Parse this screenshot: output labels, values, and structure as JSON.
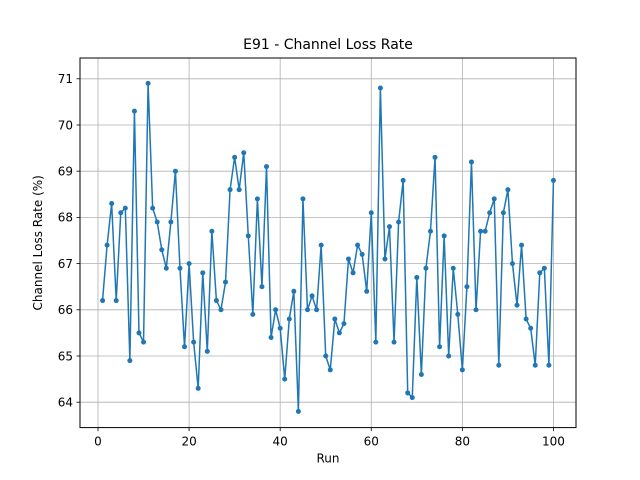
{
  "chart_data": {
    "type": "line",
    "title": "E91 - Channel Loss Rate",
    "xlabel": "Run",
    "ylabel": "Channel Loss Rate (%)",
    "xlim": [
      -3.95,
      104.95
    ],
    "ylim": [
      63.45,
      71.45
    ],
    "x_ticks": [
      0,
      20,
      40,
      60,
      80,
      100
    ],
    "y_ticks": [
      64,
      65,
      66,
      67,
      68,
      69,
      70,
      71
    ],
    "grid": true,
    "legend": "none",
    "line_color": "#1f77b4",
    "series": [
      {
        "x": [
          1,
          2,
          3,
          4,
          5,
          6,
          7,
          8,
          9,
          10,
          11,
          12,
          13,
          14,
          15,
          16,
          17,
          18,
          19,
          20,
          21,
          22,
          23,
          24,
          25,
          26,
          27,
          28,
          29,
          30,
          31,
          32,
          33,
          34,
          35,
          36,
          37,
          38,
          39,
          40,
          41,
          42,
          43,
          44,
          45,
          46,
          47,
          48,
          49,
          50,
          51,
          52,
          53,
          54,
          55,
          56,
          57,
          58,
          59,
          60,
          61,
          62,
          63,
          64,
          65,
          66,
          67,
          68,
          69,
          70,
          71,
          72,
          73,
          74,
          75,
          76,
          77,
          78,
          79,
          80,
          81,
          82,
          83,
          84,
          85,
          86,
          87,
          88,
          89,
          90,
          91,
          92,
          93,
          94,
          95,
          96,
          97,
          98,
          99,
          100
        ],
        "values": [
          66.2,
          67.4,
          68.3,
          66.2,
          68.1,
          68.2,
          64.9,
          70.3,
          65.5,
          65.3,
          70.9,
          68.2,
          67.9,
          67.3,
          66.9,
          67.9,
          69.0,
          66.9,
          65.2,
          67.0,
          65.3,
          64.3,
          66.8,
          65.1,
          67.7,
          66.2,
          66.0,
          66.6,
          68.6,
          69.3,
          68.6,
          69.4,
          67.6,
          65.9,
          68.4,
          66.5,
          69.1,
          65.4,
          66.0,
          65.6,
          64.5,
          65.8,
          66.4,
          63.8,
          68.4,
          66.0,
          66.3,
          66.0,
          67.4,
          65.0,
          64.7,
          65.8,
          65.5,
          65.7,
          67.1,
          66.8,
          67.4,
          67.2,
          66.4,
          68.1,
          65.3,
          70.8,
          67.1,
          67.8,
          65.3,
          67.9,
          68.8,
          64.2,
          64.1,
          66.7,
          64.6,
          66.9,
          67.7,
          69.3,
          65.2,
          67.6,
          65.0,
          66.9,
          65.9,
          64.7,
          66.5,
          69.2,
          66.0,
          67.7,
          67.7,
          68.1,
          68.4,
          64.8,
          68.1,
          68.6,
          67.0,
          66.1,
          67.4,
          65.8,
          65.6,
          64.8,
          66.8,
          66.9,
          64.8,
          68.8
        ]
      }
    ]
  }
}
